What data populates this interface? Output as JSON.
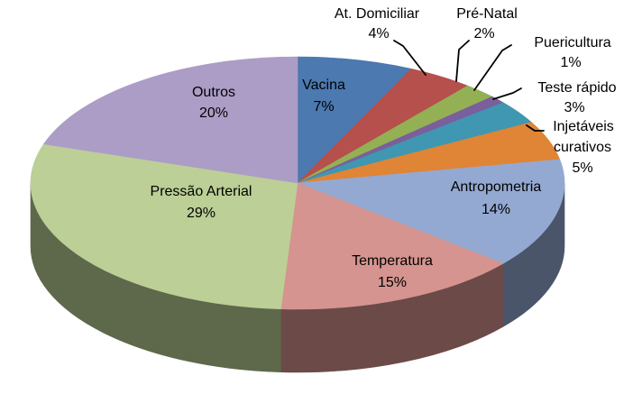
{
  "chart_data": {
    "type": "pie",
    "style": "3d-pie",
    "title": "",
    "legend": "none",
    "background": "#FFFFFF",
    "start_angle_deg": 0,
    "direction": "clockwise",
    "label_text_color": "#000000",
    "leader_line_color": "#000000",
    "slices": [
      {
        "label": "Vacina",
        "value": 7,
        "pct_label": "7%",
        "color": "#4B79B0",
        "label_placement": "inside"
      },
      {
        "label": "At. Domiciliar",
        "value": 4,
        "pct_label": "4%",
        "color": "#B5504C",
        "label_placement": "outside"
      },
      {
        "label": "Pré-Natal",
        "value": 2,
        "pct_label": "2%",
        "color": "#94B054",
        "label_placement": "outside"
      },
      {
        "label": "Puericultura",
        "value": 1,
        "pct_label": "1%",
        "color": "#7A5F9C",
        "label_placement": "outside"
      },
      {
        "label": "Teste rápido",
        "value": 3,
        "pct_label": "3%",
        "color": "#3F97B1",
        "label_placement": "outside"
      },
      {
        "label": "Injetáveis curativos",
        "value": 5,
        "pct_label": "5%",
        "color": "#E08435",
        "label_placement": "outside",
        "label_lines": [
          "Injetáveis",
          "curativos"
        ]
      },
      {
        "label": "Antropometria",
        "value": 14,
        "pct_label": "14%",
        "color": "#93A9D1",
        "label_placement": "inside"
      },
      {
        "label": "Temperatura",
        "value": 15,
        "pct_label": "15%",
        "color": "#D5948F",
        "label_placement": "inside"
      },
      {
        "label": "Pressão Arterial",
        "value": 29,
        "pct_label": "29%",
        "color": "#BCCF96",
        "label_placement": "inside"
      },
      {
        "label": "Outros",
        "value": 20,
        "pct_label": "20%",
        "color": "#AC9DC6",
        "label_placement": "inside"
      }
    ]
  }
}
